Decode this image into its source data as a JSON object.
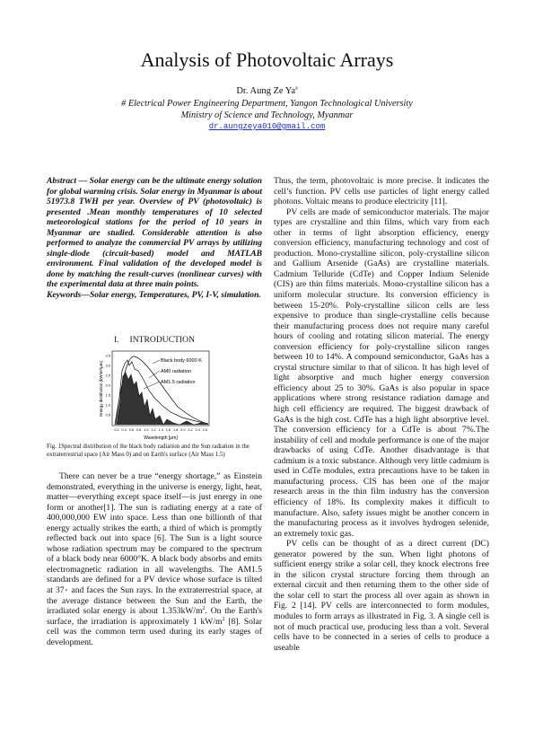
{
  "header": {
    "title": "Analysis of Photovoltaic Arrays",
    "author": {
      "name": "Dr. Aung Ze Ya",
      "sup": "a"
    },
    "affiliation": [
      "# Electrical Power Engineering Department, Yangon Technological University",
      "Ministry of Science and Technology, Myanmar"
    ],
    "email": "dr.aungzeya010@gmail.com"
  },
  "abstract": "Abstract — Solar energy can be the ultimate energy solution for global warming crisis. Solar energy in Myanmar is about 51973.8 TWH per year. Overview of PV (photovoltaic) is presented .Mean monthly temperatures of 10 selected meteorological stations for the period of 10 years in Myanmar are studied. Considerable attention is also performed to analyze the commercial PV arrays by utilizing single-diode (circuit-based) model and MATLAB environment. Final validation of the developed model is done by matching the result-curves (nonlinear curves) with the experimental data at three main points.",
  "keywords": "Keywords—Solar energy, Temperatures, PV, I-V, simulation.",
  "section": {
    "number": "I.",
    "title": "INTRODUCTION"
  },
  "figure": {
    "y_label": "Energy distribution [kW/m²/μm]",
    "x_label": "Wavelength [μm]",
    "y_ticks": [
      "0.5",
      "1.0",
      "1.5",
      "2.0",
      "2.5",
      "3.0",
      "3.5"
    ],
    "x_ticks": [
      "0.2",
      "0.4",
      "0.6",
      "0.8",
      "1.0",
      "1.2",
      "1.4",
      "1.6",
      "1.8",
      "2.0",
      "2.2",
      "2.4",
      "2.6"
    ],
    "legend": [
      "Black body 6000 K",
      "AM0 radiation",
      "AM1.5 radiation"
    ],
    "caption": "Fig. 1Spectral distribution of the black body radiation and the Sun radiation in the extraterrestrial space (Air Mass 0) and on Earth's surface (Air Mass 1.5)"
  },
  "body_left": [
    [
      "There can never be a true “energy shortage,” as Einstein demonstrated, everything in the universe is energy, light, heat, matter—everything except space itself—is just energy in one form or another[1]. The sun is radiating energy at a rate of 400,000,000 EW into space. Less than one billionth of that energy actually strikes the earth, a third of which is promptly reflected back out into space [6]. The Sun is a light source whose radiation spectrum may be compared to the spectrum of a black body near 6000°K. A black body absorbs and emits electromagnetic radiation in all wavelengths. The AM1.5 standards are defined for a PV device whose surface is tilted at 37◦ and faces the Sun rays. In the extraterrestrial space, at the average distance between the Sun and the Earth, the irradiated solar energy is about 1.353kW/m",
      {
        "sup": "2"
      },
      ". On the Earth's surface, the irradiation is approximately 1 kW/m",
      {
        "sup": "2"
      },
      " [8]. Solar cell was the common term used during its early stages of development."
    ]
  ],
  "body_right": [
    [
      "Thus, the term, photovoltaic is more precise. It indicates the cell’s function. PV cells use particles of light energy called photons. Voltaic means to produce electricity [11]."
    ],
    [
      "PV cells are made of semiconductor materials. The major types are crystalline and thin films, which vary from each other in terms of light absorption efficiency, energy conversion efficiency, manufacturing technology and cost of production. Mono-crystalline silicon, poly-crystalline silicon and Gallium Arsenide (GaAs) are crystalline materials. Cadmium Telluride (CdTe) and Copper Indium Selenide (CIS) are thin films materials. Mono-crystalline silicon has a uniform molecular structure. Its conversion efficiency is between 15-20%. Poly-crystalline silicon cells are less expensive to produce than single-crystalline cells because their manufacturing process does not require many careful hours of cooling and rotating silicon material. The energy conversion efficiency for poly-crystalline silicon ranges between 10 to 14%. A compound semiconductor, GaAs has a crystal structure similar to that of silicon. It has high level of light absorptive and much higher energy conversion efficiency about 25 to 30%. GaAs is also popular in space applications where strong resistance radiation damage and high cell efficiency are required. The biggest drawback of GaAs is the high cost. CdTe has a high light absorptive level. The conversion efficiency for a CdTe is about 7%.The instability of cell and module performance is one of the major drawbacks of using CdTe. Another disadvantage is that cadmium is a toxic substance. Although very little cadmium is used in CdTe modules, extra precautions have to be taken in manufacturing process. CIS has been one of the major research areas in the thin film industry has the conversion efficiency of 18%. Its complexity makes it difficult to manufacture. Also, safety issues might be another concern in the manufacturing process as it involves hydrogen selenide, an extremely toxic gas."
    ],
    [
      "PV cells can be thought of as a direct current (DC) generator powered by the sun. When light photons of sufficient energy strike a solar cell, they knock electrons free in the silicon crystal structure forcing them through an external circuit and then returning them to the other side of the solar cell to start the process all over again as shown in Fig. 2 [14]. PV cells are interconnected to form modules, modules to form arrays as illustrated in Fig. 3. A single cell is not of much practical use, producing less than a volt. Several cells have to be connected in a series of cells to produce a useable"
    ]
  ]
}
